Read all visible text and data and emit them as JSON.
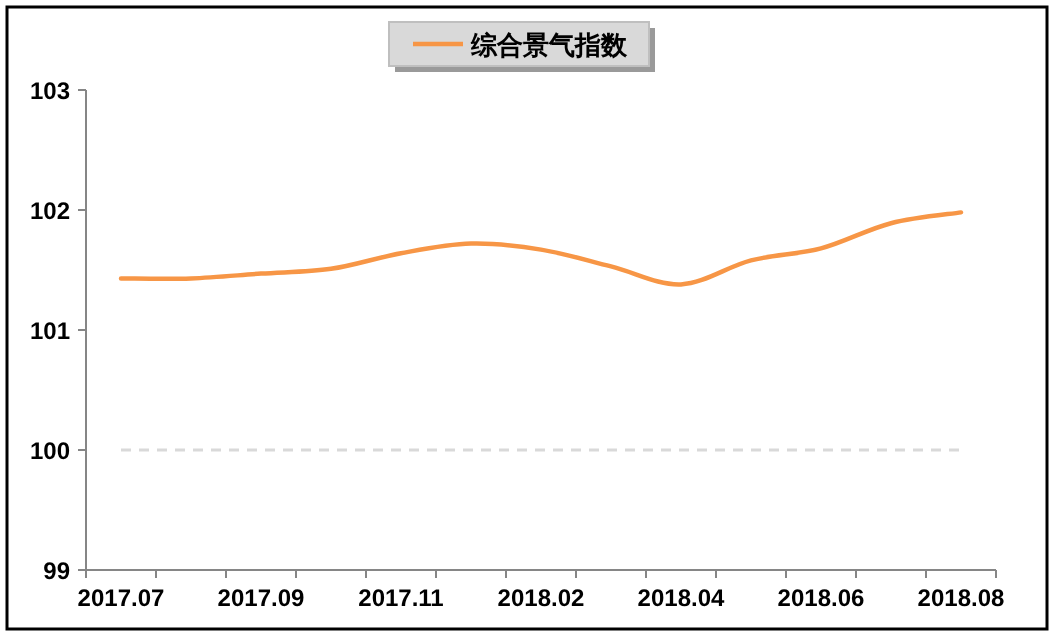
{
  "chart_data": {
    "type": "line",
    "categories": [
      "2017.07",
      null,
      "2017.09",
      null,
      "2017.11",
      null,
      "2018.02",
      null,
      "2018.04",
      null,
      "2018.06",
      null,
      "2018.08"
    ],
    "series": [
      {
        "name": "综合景气指数",
        "color": "#f79646",
        "values": [
          101.43,
          101.43,
          101.47,
          101.51,
          101.64,
          101.72,
          101.67,
          101.53,
          101.38,
          101.58,
          101.68,
          101.89,
          101.98
        ]
      }
    ],
    "ylim": [
      99,
      103
    ],
    "yticks": [
      99,
      100,
      101,
      102,
      103
    ],
    "ref_lines": [
      {
        "axis": "y",
        "value": 100,
        "color": "#d9d9d9",
        "line_style": "dashed"
      }
    ],
    "legend": "top"
  }
}
